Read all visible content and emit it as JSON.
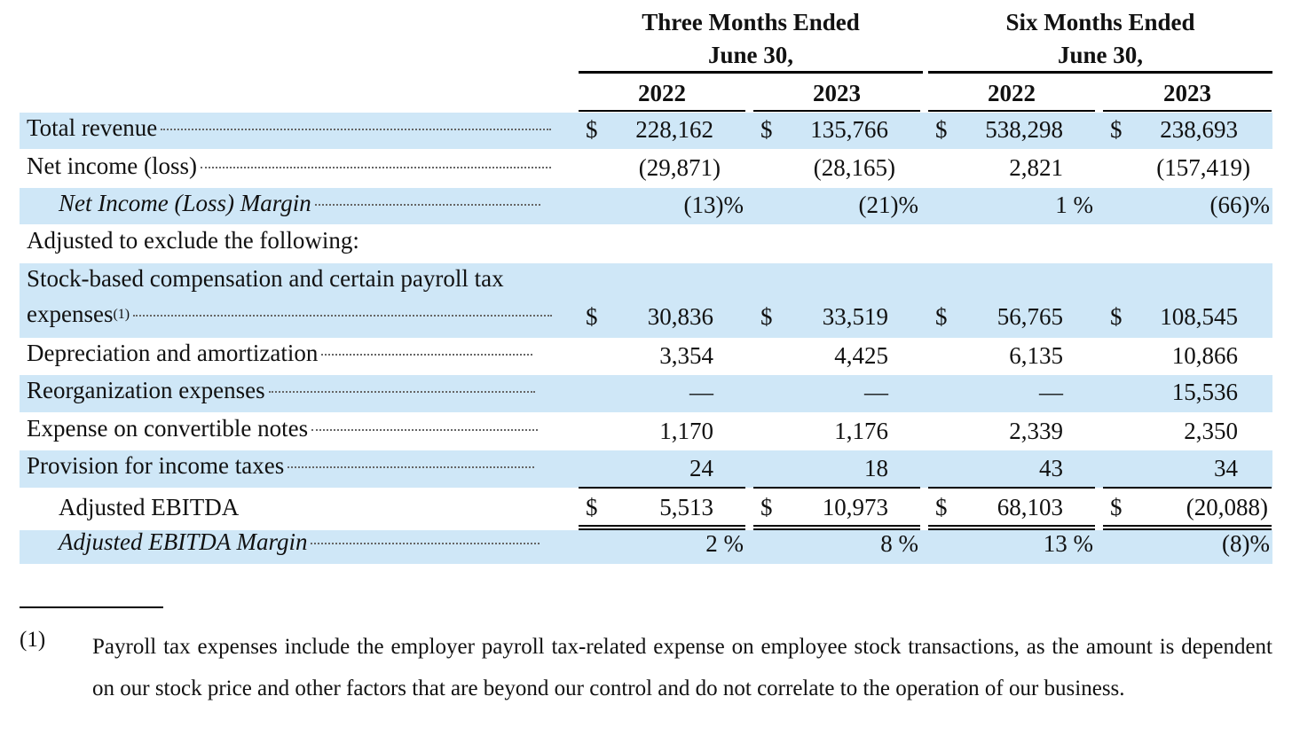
{
  "headers": {
    "three_months": [
      "Three Months Ended",
      "June 30,"
    ],
    "six_months": [
      "Six Months Ended",
      "June 30,"
    ],
    "years": [
      "2022",
      "2023",
      "2022",
      "2023"
    ]
  },
  "currency_symbol": "$",
  "rows": [
    {
      "label": "Total revenue",
      "values": [
        "228,162",
        "135,766",
        "538,298",
        "238,693"
      ]
    },
    {
      "label": "Net income (loss)",
      "values": [
        "(29,871)",
        "(28,165)",
        "2,821",
        "(157,419)"
      ]
    },
    {
      "label": "Net Income (Loss) Margin",
      "values": [
        "(13)%",
        "(21)%",
        "1 %",
        "(66)%"
      ]
    },
    {
      "label": "Adjusted to exclude the following:"
    },
    {
      "label_line1": "Stock-based compensation and certain payroll tax",
      "label_line2": "expenses",
      "footnote_ref": "(1)",
      "values": [
        "30,836",
        "33,519",
        "56,765",
        "108,545"
      ]
    },
    {
      "label": "Depreciation and amortization",
      "values": [
        "3,354",
        "4,425",
        "6,135",
        "10,866"
      ]
    },
    {
      "label": "Reorganization expenses",
      "values": [
        "—",
        "—",
        "—",
        "15,536"
      ]
    },
    {
      "label": "Expense on convertible notes",
      "values": [
        "1,170",
        "1,176",
        "2,339",
        "2,350"
      ]
    },
    {
      "label": "Provision for income taxes",
      "values": [
        "24",
        "18",
        "43",
        "34"
      ]
    },
    {
      "label": "Adjusted EBITDA",
      "values": [
        "5,513",
        "10,973",
        "68,103",
        "(20,088)"
      ]
    },
    {
      "label": "Adjusted EBITDA Margin",
      "values": [
        "2 %",
        "8 %",
        "13 %",
        "(8)%"
      ]
    }
  ],
  "footnote": {
    "marker": "(1)",
    "text": "Payroll tax expenses include the employer payroll tax-related expense on employee stock transactions, as the amount is dependent on our stock price and other factors that are beyond our control and do not correlate to the operation of our business."
  },
  "colors": {
    "row_shading": "#cfe7f7",
    "rule": "#000000"
  }
}
